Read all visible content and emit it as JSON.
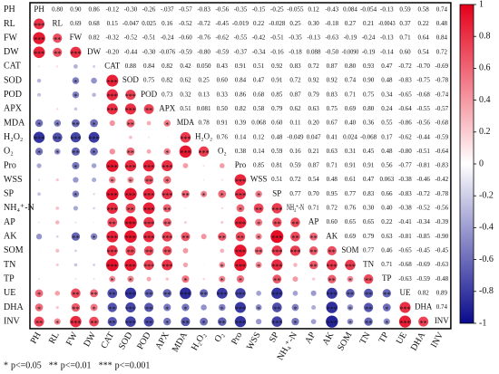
{
  "chart_data": {
    "type": "correlation",
    "variables": [
      "PH",
      "RL",
      "FW",
      "DW",
      "CAT",
      "SOD",
      "POD",
      "APX",
      "MDA",
      "H₂O₂",
      "O₂",
      "Pro",
      "WSS",
      "SP",
      "NH₄⁺-N",
      "AP",
      "AK",
      "SOM",
      "TN",
      "TP",
      "UE",
      "DHA",
      "INV"
    ],
    "values": [
      [
        0.8,
        0.9,
        0.86,
        -0.12,
        -0.3,
        -0.26,
        -0.037,
        -0.57,
        -0.83,
        -0.56,
        -0.35,
        -0.15,
        -0.25,
        -0.055,
        0.12,
        -0.43,
        0.084,
        -0.054,
        -0.13,
        0.59,
        0.58,
        0.74
      ],
      [
        0.69,
        0.68,
        0.15,
        -0.047,
        0.025,
        0.16,
        -0.52,
        -0.72,
        -0.45,
        -0.019,
        0.22,
        -0.028,
        0.25,
        0.3,
        -0.18,
        0.27,
        0.21,
        -0.0043,
        0.37,
        0.22,
        0.48
      ],
      [
        0.82,
        -0.32,
        -0.52,
        -0.51,
        -0.24,
        -0.6,
        -0.76,
        -0.62,
        -0.55,
        -0.42,
        -0.51,
        -0.35,
        -0.13,
        -0.63,
        -0.19,
        -0.24,
        -0.13,
        0.71,
        0.64,
        0.84
      ],
      [
        -0.2,
        -0.44,
        -0.3,
        -0.076,
        -0.59,
        -0.8,
        -0.59,
        -0.37,
        -0.34,
        -0.16,
        -0.18,
        0.088,
        -0.5,
        -0.009,
        -0.19,
        -0.14,
        0.6,
        0.54,
        0.72
      ],
      [
        0.88,
        0.84,
        0.82,
        0.42,
        0.05,
        0.43,
        0.91,
        0.51,
        0.92,
        0.83,
        0.72,
        0.87,
        0.8,
        0.93,
        0.47,
        -0.72,
        -0.7,
        -0.69
      ],
      [
        0.75,
        0.82,
        0.62,
        0.25,
        0.6,
        0.84,
        0.47,
        0.91,
        0.72,
        0.92,
        0.92,
        0.74,
        0.9,
        0.48,
        -0.83,
        -0.75,
        -0.78
      ],
      [
        0.73,
        0.32,
        0.13,
        0.33,
        0.86,
        0.68,
        0.85,
        0.87,
        0.79,
        0.83,
        0.71,
        0.75,
        0.34,
        -0.65,
        -0.68,
        -0.74
      ],
      [
        0.51,
        0.081,
        0.5,
        0.82,
        0.58,
        0.79,
        0.62,
        0.63,
        0.75,
        0.69,
        0.8,
        0.24,
        -0.64,
        -0.55,
        -0.57
      ],
      [
        0.78,
        0.91,
        0.39,
        0.068,
        0.6,
        0.11,
        0.2,
        0.67,
        0.4,
        0.36,
        0.55,
        -0.86,
        -0.56,
        -0.68
      ],
      [
        0.76,
        0.14,
        0.12,
        0.48,
        -0.049,
        0.047,
        0.41,
        0.024,
        -0.068,
        0.17,
        -0.62,
        -0.44,
        -0.59
      ],
      [
        0.38,
        0.14,
        0.59,
        0.16,
        0.21,
        0.63,
        0.31,
        0.45,
        0.48,
        -0.8,
        -0.51,
        -0.64
      ],
      [
        0.85,
        0.81,
        0.59,
        0.87,
        0.71,
        0.91,
        0.91,
        0.56,
        -0.77,
        -0.81,
        -0.83
      ],
      [
        0.51,
        0.72,
        0.54,
        0.48,
        0.61,
        0.47,
        0.063,
        -0.38,
        -0.46,
        -0.42
      ],
      [
        0.77,
        0.7,
        0.95,
        0.77,
        0.83,
        0.66,
        -0.83,
        -0.72,
        -0.78
      ],
      [
        0.71,
        0.72,
        0.76,
        0.3,
        0.4,
        -0.38,
        -0.52,
        -0.56
      ],
      [
        0.6,
        0.65,
        0.65,
        0.22,
        -0.41,
        -0.34,
        -0.39
      ],
      [
        0.69,
        0.79,
        0.63,
        -0.81,
        -0.85,
        -0.9
      ],
      [
        0.77,
        0.46,
        -0.65,
        -0.45,
        -0.45
      ],
      [
        0.71,
        -0.68,
        -0.69,
        -0.63
      ],
      [
        -0.63,
        -0.59,
        -0.48
      ],
      [
        0.82,
        0.89
      ],
      [
        0.74
      ]
    ],
    "value_labels": [
      [
        "0.80",
        "0.90",
        "0.86",
        "-0.12",
        "-0.30",
        "-0.26",
        "-.037",
        "-0.57",
        "-0.83",
        "-0.56",
        "-0.35",
        "-0.15",
        "-0.25",
        "-0.055",
        "0.12",
        "-0.43",
        "0.084",
        "-0.054",
        "-0.13",
        "0.59",
        "0.58",
        "0.74"
      ],
      [
        "0.69",
        "0.68",
        "0.15",
        "-0.047",
        "0.025",
        "0.16",
        "-0.52",
        "-0.72",
        "-0.45",
        "-0.019",
        "0.22",
        "-0.028",
        "0.25",
        "0.30",
        "-0.18",
        "0.27",
        "0.21",
        "-0.0043",
        "0.37",
        "0.22",
        "0.48"
      ],
      [
        "0.82",
        "-0.32",
        "-0.52",
        "-0.51",
        "-0.24",
        "-0.60",
        "-0.76",
        "-0.62",
        "-0.55",
        "-0.42",
        "-0.51",
        "-0.35",
        "-0.13",
        "-0.63",
        "-0.19",
        "-0.24",
        "-0.13",
        "0.71",
        "0.64",
        "0.84"
      ],
      [
        "-0.20",
        "-0.44",
        "-0.30",
        "-0.076",
        "-0.59",
        "-0.80",
        "-0.59",
        "-0.37",
        "-0.34",
        "-0.16",
        "-0.18",
        "0.088",
        "-0.50",
        "-0.0090",
        "-0.19",
        "-0.14",
        "0.60",
        "0.54",
        "0.72"
      ],
      [
        "0.88",
        "0.84",
        "0.82",
        "0.42",
        "0.050",
        "0.43",
        "0.91",
        "0.51",
        "0.92",
        "0.83",
        "0.72",
        "0.87",
        "0.80",
        "0.93",
        "0.47",
        "-0.72",
        "-0.70",
        "-0.69"
      ],
      [
        "0.75",
        "0.82",
        "0.62",
        "0.25",
        "0.60",
        "0.84",
        "0.47",
        "0.91",
        "0.72",
        "0.92",
        "0.92",
        "0.74",
        "0.90",
        "0.48",
        "-0.83",
        "-0.75",
        "-0.78"
      ],
      [
        "0.73",
        "0.32",
        "0.13",
        "0.33",
        "0.86",
        "0.68",
        "0.85",
        "0.87",
        "0.79",
        "0.83",
        "0.71",
        "0.75",
        "0.34",
        "-0.65",
        "-0.68",
        "-0.74"
      ],
      [
        "0.51",
        "0.081",
        "0.50",
        "0.82",
        "0.58",
        "0.79",
        "0.62",
        "0.63",
        "0.75",
        "0.69",
        "0.80",
        "0.24",
        "-0.64",
        "-0.55",
        "-0.57"
      ],
      [
        "0.78",
        "0.91",
        "0.39",
        "0.068",
        "0.60",
        "0.11",
        "0.20",
        "0.67",
        "0.40",
        "0.36",
        "0.55",
        "-0.86",
        "-0.56",
        "-0.68"
      ],
      [
        "0.76",
        "0.14",
        "0.12",
        "0.48",
        "-0.049",
        "0.047",
        "0.41",
        "0.024",
        "-0.068",
        "0.17",
        "-0.62",
        "-0.44",
        "-0.59"
      ],
      [
        "0.38",
        "0.14",
        "0.59",
        "0.16",
        "0.21",
        "0.63",
        "0.31",
        "0.45",
        "0.48",
        "-0.80",
        "-0.51",
        "-0.64"
      ],
      [
        "0.85",
        "0.81",
        "0.59",
        "0.87",
        "0.71",
        "0.91",
        "0.91",
        "0.56",
        "-0.77",
        "-0.81",
        "-0.83"
      ],
      [
        "0.51",
        "0.72",
        "0.54",
        "0.48",
        "0.61",
        "0.47",
        "0.063",
        "-0.38",
        "-0.46",
        "-0.42"
      ],
      [
        "0.77",
        "0.70",
        "0.95",
        "0.77",
        "0.83",
        "0.66",
        "-0.83",
        "-0.72",
        "-0.78"
      ],
      [
        "0.71",
        "0.72",
        "0.76",
        "0.30",
        "0.40",
        "-0.38",
        "-0.52",
        "-0.56"
      ],
      [
        "0.60",
        "0.65",
        "0.65",
        "0.22",
        "-0.41",
        "-0.34",
        "-0.39"
      ],
      [
        "0.69",
        "0.79",
        "0.63",
        "-0.81",
        "-0.85",
        "-0.90"
      ],
      [
        "0.77",
        "0.46",
        "-0.65",
        "-0.45",
        "-0.45"
      ],
      [
        "0.71",
        "-0.68",
        "-0.69",
        "-0.63"
      ],
      [
        "-0.63",
        "-0.59",
        "-0.48"
      ],
      [
        "0.82",
        "0.89"
      ],
      [
        "0.74"
      ]
    ],
    "stars": [
      [
        3,
        3,
        3,
        0,
        0,
        0,
        0,
        1,
        3,
        1,
        0,
        0,
        0,
        0,
        0,
        0,
        0,
        0,
        0,
        1,
        1,
        2
      ],
      [
        2,
        2,
        0,
        0,
        0,
        0,
        1,
        2,
        1,
        0,
        0,
        0,
        0,
        0,
        0,
        0,
        0,
        0,
        0,
        0,
        1
      ],
      [
        3,
        0,
        1,
        1,
        0,
        2,
        3,
        2,
        1,
        0,
        1,
        0,
        0,
        2,
        0,
        0,
        0,
        2,
        2,
        3
      ],
      [
        0,
        0,
        0,
        0,
        1,
        3,
        1,
        0,
        0,
        0,
        0,
        0,
        1,
        0,
        0,
        0,
        2,
        1,
        2
      ],
      [
        3,
        3,
        3,
        0,
        0,
        0,
        3,
        1,
        3,
        3,
        2,
        3,
        3,
        3,
        1,
        2,
        2,
        2
      ],
      [
        3,
        3,
        2,
        0,
        2,
        3,
        1,
        3,
        2,
        3,
        3,
        2,
        3,
        1,
        3,
        3,
        3
      ],
      [
        2,
        0,
        0,
        0,
        3,
        2,
        3,
        3,
        3,
        3,
        2,
        3,
        0,
        2,
        2,
        2
      ],
      [
        1,
        0,
        1,
        3,
        1,
        3,
        2,
        2,
        3,
        2,
        3,
        0,
        2,
        1,
        1
      ],
      [
        3,
        3,
        0,
        0,
        2,
        0,
        0,
        2,
        0,
        0,
        1,
        3,
        1,
        2
      ],
      [
        3,
        0,
        0,
        1,
        0,
        0,
        0,
        0,
        0,
        0,
        2,
        0,
        1
      ],
      [
        0,
        0,
        1,
        0,
        0,
        2,
        0,
        1,
        1,
        3,
        1,
        2
      ],
      [
        3,
        3,
        1,
        3,
        2,
        3,
        3,
        1,
        3,
        3,
        3
      ],
      [
        1,
        2,
        1,
        1,
        2,
        1,
        0,
        0,
        1,
        0
      ],
      [
        3,
        2,
        3,
        3,
        3,
        2,
        3,
        2,
        3
      ],
      [
        2,
        2,
        3,
        0,
        0,
        0,
        1,
        1
      ],
      [
        2,
        2,
        2,
        0,
        0,
        0,
        0
      ],
      [
        2,
        3,
        2,
        3,
        3,
        3
      ],
      [
        3,
        1,
        2,
        1,
        1
      ],
      [
        2,
        2,
        2,
        2
      ],
      [
        2,
        1,
        1
      ],
      [
        3,
        3
      ],
      [
        2
      ]
    ],
    "significance": [
      {
        "symbol": "*",
        "label": "p<=0.05"
      },
      {
        "symbol": "**",
        "label": "p<=0.01"
      },
      {
        "symbol": "***",
        "label": "p<=0.001"
      }
    ],
    "colorbar_lim": [
      -1,
      1
    ],
    "colorbar_ticks": [
      1,
      0.8,
      0.6,
      0.4,
      0.2,
      0,
      -0.2,
      -0.4,
      -0.6,
      -0.8,
      -1
    ],
    "colors": [
      "#0a0a8c",
      "#ffffff",
      "#e5001a"
    ]
  }
}
